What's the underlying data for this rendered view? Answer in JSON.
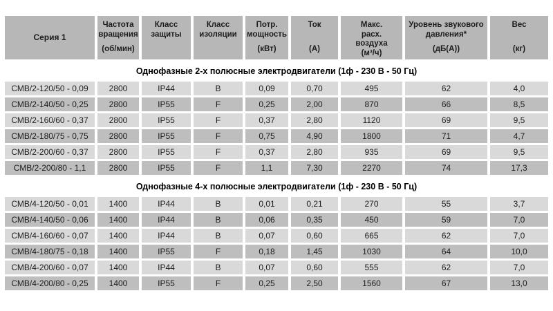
{
  "table": {
    "colors": {
      "header_bg": "#b7b7b7",
      "row_light": "#d9d9d9",
      "row_dark": "#bebebe",
      "text": "#1c1c1c",
      "background": "#ffffff"
    },
    "columns": [
      {
        "label": "Серия 1",
        "unit": ""
      },
      {
        "label": "Частота\nвращения",
        "unit": "(об/мин)"
      },
      {
        "label": "Класс\nзащиты",
        "unit": ""
      },
      {
        "label": "Класс\nизоляции",
        "unit": ""
      },
      {
        "label": "Потр.\nмощность",
        "unit": "(кВт)"
      },
      {
        "label": "Ток",
        "unit": "(А)"
      },
      {
        "label": "Макс.\nрасх.\nвоздуха",
        "unit": "(м³/ч)"
      },
      {
        "label": "Уровень звукового\nдавления*",
        "unit": "(дБ(А))"
      },
      {
        "label": "Вес",
        "unit": "(кг)"
      }
    ],
    "sections": [
      {
        "title": "Однофазные 2-х полюсные электродвигатели (1ф - 230 В - 50 Гц)",
        "rows": [
          [
            "СМВ/2-120/50 - 0,09",
            "2800",
            "IP44",
            "B",
            "0,09",
            "0,70",
            "495",
            "62",
            "4,0"
          ],
          [
            "СМВ/2-140/50 - 0,25",
            "2800",
            "IP55",
            "F",
            "0,25",
            "2,00",
            "870",
            "66",
            "8,5"
          ],
          [
            "СМВ/2-160/60 - 0,37",
            "2800",
            "IP55",
            "F",
            "0,37",
            "2,80",
            "1120",
            "69",
            "9,5"
          ],
          [
            "СМВ/2-180/75 - 0,75",
            "2800",
            "IP55",
            "F",
            "0,75",
            "4,90",
            "1800",
            "71",
            "4,7"
          ],
          [
            "СМВ/2-200/60 - 0,37",
            "2800",
            "IP55",
            "F",
            "0,37",
            "2,80",
            "935",
            "69",
            "9,5"
          ],
          [
            "СМВ/2-200/80 - 1,1",
            "2800",
            "IP55",
            "F",
            "1,1",
            "7,30",
            "2270",
            "74",
            "17,3"
          ]
        ]
      },
      {
        "title": "Однофазные 4-х полюсные электродвигатели (1ф - 230 В - 50 Гц)",
        "rows": [
          [
            "СМВ/4-120/50 - 0,01",
            "1400",
            "IP44",
            "B",
            "0,01",
            "0,21",
            "270",
            "55",
            "3,7"
          ],
          [
            "СМВ/4-140/50 - 0,06",
            "1400",
            "IP44",
            "B",
            "0,06",
            "0,35",
            "450",
            "59",
            "7,0"
          ],
          [
            "СМВ/4-160/60 - 0,07",
            "1400",
            "IP44",
            "B",
            "0,07",
            "0,60",
            "665",
            "62",
            "7,0"
          ],
          [
            "СМВ/4-180/75 - 0,18",
            "1400",
            "IP55",
            "F",
            "0,18",
            "1,45",
            "1030",
            "64",
            "10,0"
          ],
          [
            "СМВ/4-200/60 - 0,07",
            "1400",
            "IP44",
            "B",
            "0,07",
            "0,60",
            "555",
            "62",
            "7,0"
          ],
          [
            "СМВ/4-200/80 - 0,25",
            "1400",
            "IP55",
            "F",
            "0,25",
            "2,50",
            "1560",
            "67",
            "13,0"
          ]
        ]
      }
    ]
  }
}
